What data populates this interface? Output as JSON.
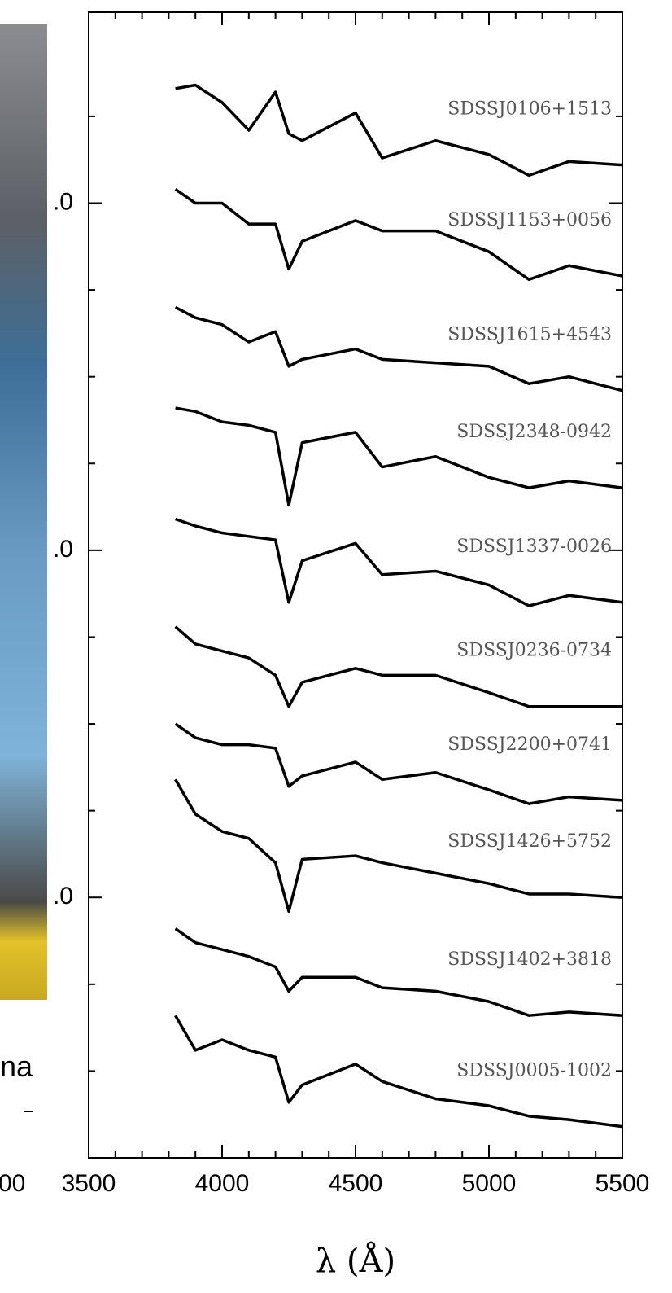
{
  "chart_data": {
    "type": "line",
    "x_label": "λ (Å)",
    "x": [
      3825,
      3900,
      4000,
      4100,
      4200,
      4250,
      4300,
      4500,
      4600,
      4800,
      5000,
      5150,
      5300,
      5500
    ],
    "xlim": [
      3500,
      5500
    ],
    "xticks": [
      3500,
      4000,
      4500,
      5000,
      5500
    ],
    "xminor": [
      3600,
      3700,
      3800,
      3900,
      4100,
      4200,
      4300,
      4400,
      4600,
      4700,
      4800,
      4900,
      5100,
      5200,
      5300,
      5400
    ],
    "ylim": [
      0.25,
      3.55
    ],
    "yticks": [
      {
        "value": 1,
        "label": ".0"
      },
      {
        "value": 2,
        "label": ".0"
      },
      {
        "value": 3,
        "label": ".0"
      }
    ],
    "yminor": [
      0.5,
      0.75,
      1.25,
      1.5,
      1.75,
      2.25,
      2.5,
      2.75,
      3.25
    ],
    "cropped_label": "00",
    "side_text": "na",
    "series": [
      {
        "name": "SDSSJ0106+1513",
        "color": "#000000",
        "values": [
          3.33,
          3.34,
          3.29,
          3.21,
          3.32,
          3.2,
          3.18,
          3.26,
          3.13,
          3.18,
          3.14,
          3.08,
          3.12,
          3.11
        ]
      },
      {
        "name": "SDSSJ1153+0056",
        "color": "#000000",
        "values": [
          3.04,
          3.0,
          3.0,
          2.94,
          2.94,
          2.81,
          2.89,
          2.95,
          2.92,
          2.92,
          2.86,
          2.78,
          2.82,
          2.79
        ]
      },
      {
        "name": "SDSSJ1615+4543",
        "color": "#000000",
        "values": [
          2.7,
          2.67,
          2.65,
          2.6,
          2.63,
          2.53,
          2.55,
          2.58,
          2.55,
          2.54,
          2.53,
          2.48,
          2.5,
          2.46
        ]
      },
      {
        "name": "SDSSJ2348-0942",
        "color": "#000000",
        "values": [
          2.41,
          2.4,
          2.37,
          2.36,
          2.34,
          2.13,
          2.31,
          2.34,
          2.24,
          2.27,
          2.21,
          2.18,
          2.2,
          2.18
        ]
      },
      {
        "name": "SDSSJ1337-0026",
        "color": "#000000",
        "values": [
          2.09,
          2.07,
          2.05,
          2.04,
          2.03,
          1.85,
          1.97,
          2.02,
          1.93,
          1.94,
          1.9,
          1.84,
          1.87,
          1.85
        ]
      },
      {
        "name": "SDSSJ0236-0734",
        "color": "#000000",
        "values": [
          1.78,
          1.73,
          1.71,
          1.69,
          1.64,
          1.55,
          1.62,
          1.66,
          1.64,
          1.64,
          1.59,
          1.55,
          1.55,
          1.55
        ]
      },
      {
        "name": "SDSSJ2200+0741",
        "color": "#000000",
        "values": [
          1.5,
          1.46,
          1.44,
          1.44,
          1.43,
          1.32,
          1.35,
          1.39,
          1.34,
          1.36,
          1.31,
          1.27,
          1.29,
          1.28
        ]
      },
      {
        "name": "SDSSJ1426+5752",
        "color": "#000000",
        "values": [
          1.34,
          1.24,
          1.19,
          1.17,
          1.1,
          0.96,
          1.11,
          1.12,
          1.1,
          1.07,
          1.04,
          1.01,
          1.01,
          1.0
        ]
      },
      {
        "name": "SDSSJ1402+3818",
        "color": "#000000",
        "values": [
          0.91,
          0.87,
          0.85,
          0.83,
          0.8,
          0.73,
          0.77,
          0.77,
          0.74,
          0.73,
          0.7,
          0.66,
          0.67,
          0.66
        ]
      },
      {
        "name": "SDSSJ0005-1002",
        "color": "#000000",
        "values": [
          0.66,
          0.56,
          0.59,
          0.56,
          0.54,
          0.41,
          0.46,
          0.52,
          0.47,
          0.42,
          0.4,
          0.37,
          0.36,
          0.34
        ]
      }
    ]
  }
}
